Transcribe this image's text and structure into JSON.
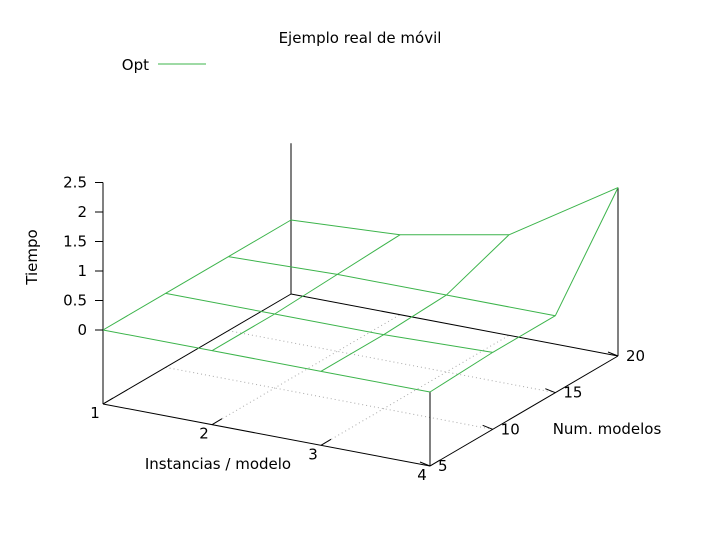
{
  "chart_data": {
    "type": "surface",
    "title": "Ejemplo real de móvil",
    "xlabel": "Instancias / modelo",
    "ylabel": "Num. modelos",
    "zlabel": "Tiempo",
    "legend": {
      "entries": [
        "Opt"
      ],
      "placement": "top-left"
    },
    "grid": "base-only (dotted)",
    "colors": {
      "series": "#3cb44b",
      "axes": "#000000",
      "grid": "#aaaaaa"
    },
    "x_ticks": [
      "1",
      "2",
      "3",
      "4"
    ],
    "y_ticks": [
      "5",
      "10",
      "15",
      "20"
    ],
    "z_ticks": [
      "0",
      "0.5",
      "1",
      "1.5",
      "2",
      "2.5"
    ],
    "xlim": [
      1,
      4
    ],
    "ylim": [
      5,
      20
    ],
    "zlim": [
      0,
      2.5
    ],
    "series": [
      {
        "name": "Opt",
        "x": [
          1,
          2,
          3,
          4
        ],
        "y": [
          5,
          10,
          15,
          20
        ],
        "z": [
          [
            0.0,
            0.0,
            0.0,
            0.0
          ],
          [
            0.0,
            0.0,
            0.05,
            0.1
          ],
          [
            0.0,
            0.0,
            0.05,
            0.45
          ],
          [
            0.0,
            0.05,
            0.05,
            1.6
          ]
        ]
      }
    ]
  }
}
